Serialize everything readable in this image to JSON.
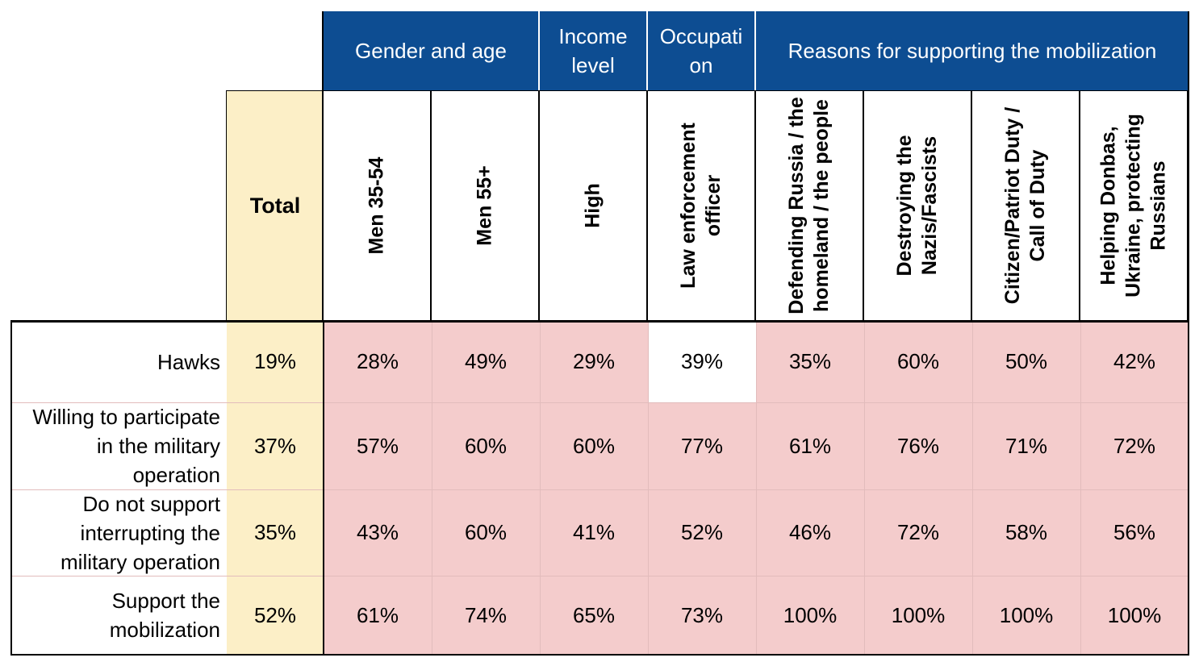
{
  "group_headers": [
    {
      "label": "Gender and age"
    },
    {
      "label": "Income level"
    },
    {
      "label": "Occupati on"
    },
    {
      "label": "Reasons for supporting the mobilization"
    }
  ],
  "total_header": "Total",
  "column_headers": [
    "Men 35-54",
    "Men 55+",
    "High",
    "Law enforcement officer",
    "Defending Russia / the homeland / the people",
    "Destroying the Nazis/Fascists",
    "Citizen/Patriot Duty / Call of Duty",
    "Helping Donbas, Ukraine, protecting Russians"
  ],
  "rows": [
    {
      "label": "Hawks",
      "total": "19%",
      "values": [
        "28%",
        "49%",
        "29%",
        "39%",
        "35%",
        "60%",
        "50%",
        "42%"
      ]
    },
    {
      "label": "Willing to participate in the military operation",
      "total": "37%",
      "values": [
        "57%",
        "60%",
        "60%",
        "77%",
        "61%",
        "76%",
        "71%",
        "72%"
      ]
    },
    {
      "label": "Do not support interrupting the military operation",
      "total": "35%",
      "values": [
        "43%",
        "60%",
        "41%",
        "52%",
        "46%",
        "72%",
        "58%",
        "56%"
      ]
    },
    {
      "label": "Support the mobilization",
      "total": "52%",
      "values": [
        "61%",
        "74%",
        "65%",
        "73%",
        "100%",
        "100%",
        "100%",
        "100%"
      ]
    }
  ],
  "colors": {
    "header_blue": "#0d4d92",
    "total_yellow": "#fcefc7",
    "cell_pink": "#f4cccc",
    "cell_white": "#ffffff"
  },
  "chart_data": {
    "type": "table",
    "columns": [
      "Total",
      "Men 35-54",
      "Men 55+",
      "High",
      "Law enforcement officer",
      "Defending Russia / the homeland / the people",
      "Destroying the Nazis/Fascists",
      "Citizen/Patriot Duty / Call of Duty",
      "Helping Donbas, Ukraine, protecting Russians"
    ],
    "column_groups": [
      {
        "name": "Gender and age",
        "columns": [
          "Men 35-54",
          "Men 55+"
        ]
      },
      {
        "name": "Income level",
        "columns": [
          "High"
        ]
      },
      {
        "name": "Occupati on",
        "columns": [
          "Law enforcement officer"
        ]
      },
      {
        "name": "Reasons for supporting the mobilization",
        "columns": [
          "Defending Russia / the homeland / the people",
          "Destroying the Nazis/Fascists",
          "Citizen/Patriot Duty / Call of Duty",
          "Helping Donbas, Ukraine, protecting Russians"
        ]
      }
    ],
    "series": [
      {
        "name": "Hawks",
        "values": [
          19,
          28,
          49,
          29,
          39,
          35,
          60,
          50,
          42
        ]
      },
      {
        "name": "Willing to participate in the military operation",
        "values": [
          37,
          57,
          60,
          60,
          77,
          61,
          76,
          71,
          72
        ]
      },
      {
        "name": "Do not support interrupting the military operation",
        "values": [
          35,
          43,
          60,
          41,
          52,
          46,
          72,
          58,
          56
        ]
      },
      {
        "name": "Support the mobilization",
        "values": [
          52,
          61,
          74,
          65,
          73,
          100,
          100,
          100,
          100
        ]
      }
    ],
    "unit": "%",
    "highlight": "pink background on all category cells except Law enforcement officer / Hawks"
  }
}
